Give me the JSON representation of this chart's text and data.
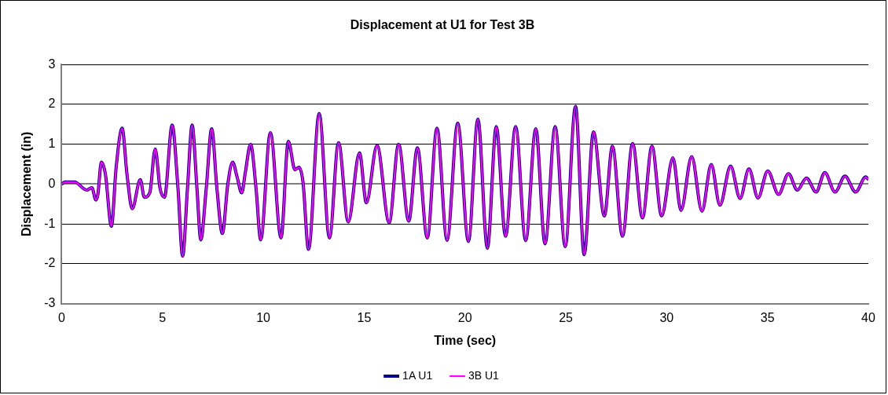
{
  "chart_data": {
    "type": "line",
    "title": "Displacement at U1 for Test 3B",
    "xlabel": "Time (sec)",
    "ylabel": "Displacement (in)",
    "x": [
      0,
      0.17,
      0.64,
      1.24,
      1.5,
      1.7,
      1.8,
      1.97,
      2.17,
      2.47,
      2.7,
      3.0,
      3.24,
      3.5,
      3.9,
      4.1,
      4.37,
      4.64,
      4.88,
      5.1,
      5.48,
      5.77,
      6.0,
      6.24,
      6.47,
      6.71,
      6.9,
      7.17,
      7.44,
      7.7,
      7.97,
      8.24,
      8.48,
      8.7,
      8.93,
      9.1,
      9.37,
      9.64,
      9.87,
      10.35,
      10.88,
      11.24,
      11.57,
      11.77,
      11.97,
      12.24,
      12.77,
      13.28,
      13.73,
      14.21,
      14.77,
      15.11,
      15.64,
      16.24,
      16.71,
      17.21,
      17.64,
      18.13,
      18.61,
      19.11,
      19.64,
      20.17,
      20.64,
      21.11,
      21.55,
      22.01,
      22.51,
      23.01,
      23.51,
      23.97,
      24.47,
      24.97,
      25.48,
      25.91,
      26.37,
      26.91,
      27.31,
      27.81,
      28.31,
      28.8,
      29.27,
      29.75,
      30.31,
      30.71,
      31.24,
      31.75,
      32.21,
      32.64,
      33.17,
      33.64,
      34.08,
      34.53,
      35.01,
      35.55,
      36.04,
      36.48,
      36.93,
      37.41,
      37.84,
      38.35,
      38.84,
      39.37,
      39.87,
      40
    ],
    "series": [
      {
        "name": "1A U1",
        "color": "#000080",
        "values": [
          0,
          0.05,
          0.05,
          -0.15,
          -0.09,
          -0.4,
          -0.25,
          0.55,
          0.25,
          -1.06,
          0.4,
          1.4,
          0.25,
          -0.62,
          0.11,
          -0.33,
          -0.22,
          0.88,
          -0.11,
          -0.33,
          1.48,
          -0.11,
          -1.81,
          -0.11,
          1.48,
          -0.11,
          -1.4,
          -0.11,
          1.39,
          -0.11,
          -1.24,
          0,
          0.55,
          0.18,
          -0.22,
          0.26,
          1.0,
          -0.11,
          -1.4,
          1.29,
          -1.35,
          1.07,
          0.36,
          0.42,
          0.04,
          -1.64,
          1.77,
          -1.35,
          1.04,
          -0.95,
          0.78,
          -0.47,
          0.97,
          -0.97,
          1.0,
          -0.93,
          0.91,
          -1.35,
          1.4,
          -1.41,
          1.53,
          -1.44,
          1.63,
          -1.61,
          1.44,
          -1.31,
          1.44,
          -1.42,
          1.39,
          -1.5,
          1.44,
          -1.57,
          1.95,
          -1.77,
          1.31,
          -0.8,
          0.95,
          -1.31,
          1.02,
          -0.85,
          0.95,
          -0.8,
          0.66,
          -0.66,
          0.69,
          -0.68,
          0.49,
          -0.53,
          0.45,
          -0.36,
          0.38,
          -0.35,
          0.33,
          -0.26,
          0.26,
          -0.15,
          0.15,
          -0.2,
          0.29,
          -0.2,
          0.2,
          -0.2,
          0.18,
          0.11
        ]
      },
      {
        "name": "3B U1",
        "color": "#ff00ff",
        "values": [
          0,
          0.05,
          0.05,
          -0.15,
          -0.09,
          -0.4,
          -0.25,
          0.55,
          0.25,
          -1.06,
          0.4,
          1.4,
          0.25,
          -0.62,
          0.11,
          -0.33,
          -0.22,
          0.88,
          -0.11,
          -0.33,
          1.48,
          -0.11,
          -1.81,
          -0.11,
          1.48,
          -0.11,
          -1.4,
          -0.11,
          1.39,
          -0.11,
          -1.24,
          0,
          0.55,
          0.18,
          -0.22,
          0.26,
          1.0,
          -0.11,
          -1.4,
          1.29,
          -1.35,
          1.07,
          0.36,
          0.42,
          0.04,
          -1.64,
          1.77,
          -1.35,
          1.04,
          -0.95,
          0.78,
          -0.47,
          0.97,
          -0.97,
          1.0,
          -0.93,
          0.91,
          -1.35,
          1.4,
          -1.41,
          1.53,
          -1.44,
          1.63,
          -1.61,
          1.44,
          -1.31,
          1.44,
          -1.42,
          1.39,
          -1.5,
          1.44,
          -1.57,
          1.95,
          -1.77,
          1.31,
          -0.8,
          0.95,
          -1.31,
          1.02,
          -0.85,
          0.95,
          -0.8,
          0.66,
          -0.66,
          0.69,
          -0.68,
          0.49,
          -0.53,
          0.45,
          -0.36,
          0.38,
          -0.35,
          0.33,
          -0.26,
          0.26,
          -0.15,
          0.15,
          -0.2,
          0.29,
          -0.2,
          0.2,
          -0.2,
          0.18,
          0.11
        ]
      }
    ],
    "xlim": [
      0,
      40
    ],
    "xticks": [
      0,
      5,
      10,
      15,
      20,
      25,
      30,
      35,
      40
    ],
    "ylim": [
      -3,
      3
    ],
    "yticks": [
      -3,
      -2,
      -1,
      0,
      1,
      2,
      3
    ],
    "grid": "y",
    "legend": "bottom",
    "marker": "none",
    "line_style": "solid"
  }
}
